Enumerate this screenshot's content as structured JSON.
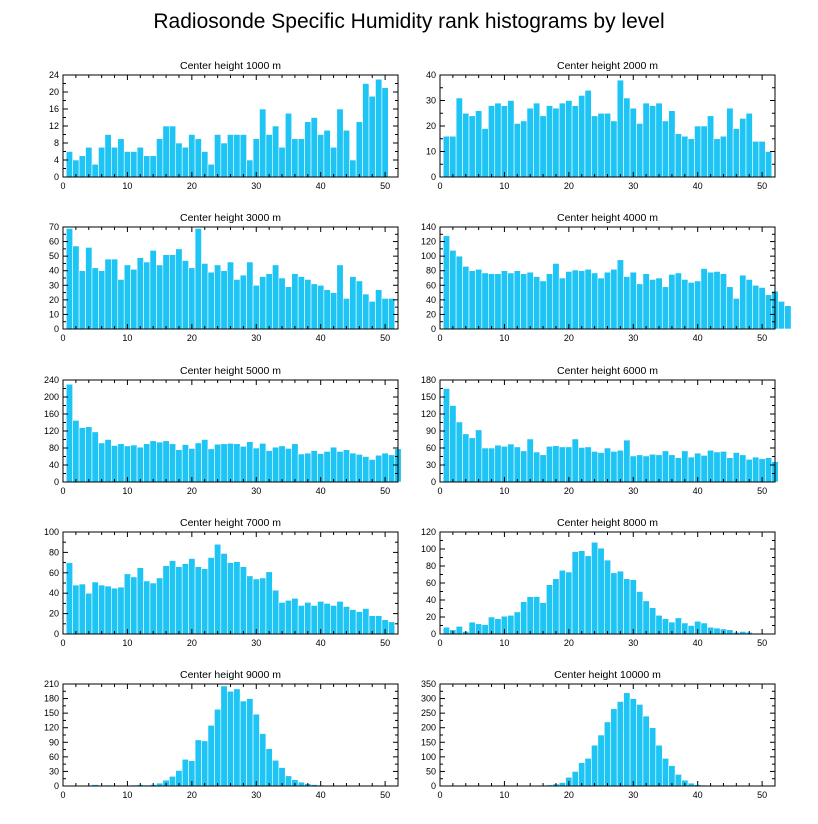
{
  "figure_title": "Radiosonde Specific Humidity rank histograms by level",
  "colors": {
    "bar": "#1ec4f4",
    "axis": "#000000",
    "background": "#ffffff"
  },
  "chart_data": [
    {
      "type": "bar",
      "title": "Center height 1000 m",
      "xlim": [
        0,
        52
      ],
      "ylim": [
        0,
        24
      ],
      "xticks": [
        0,
        10,
        20,
        30,
        40,
        50
      ],
      "yticks": [
        0,
        4,
        8,
        12,
        16,
        20,
        24
      ],
      "x_start": 1,
      "values": [
        6,
        4,
        5,
        7,
        3,
        7,
        10,
        7,
        9,
        6,
        6,
        7,
        5,
        5,
        9,
        12,
        12,
        8,
        7,
        10,
        9,
        6,
        3,
        10,
        8,
        10,
        10,
        10,
        4,
        9,
        16,
        10,
        12,
        7,
        15,
        9,
        9,
        13,
        14,
        10,
        11,
        7,
        16,
        11,
        4,
        13,
        22,
        19,
        23,
        21
      ]
    },
    {
      "type": "bar",
      "title": "Center height 2000 m",
      "xlim": [
        0,
        52
      ],
      "ylim": [
        0,
        40
      ],
      "xticks": [
        0,
        10,
        20,
        30,
        40,
        50
      ],
      "yticks": [
        0,
        10,
        20,
        30,
        40
      ],
      "x_start": 1,
      "values": [
        16,
        16,
        31,
        25,
        24,
        26,
        19,
        28,
        29,
        28,
        30,
        21,
        22,
        27,
        29,
        24,
        28,
        27,
        29,
        30,
        28,
        32,
        34,
        24,
        25,
        25,
        22,
        38,
        31,
        27,
        21,
        29,
        28,
        29,
        22,
        26,
        17,
        16,
        15,
        20,
        20,
        24,
        15,
        16,
        27,
        19,
        23,
        25,
        14,
        14,
        10
      ]
    },
    {
      "type": "bar",
      "title": "Center height 3000 m",
      "xlim": [
        0,
        52
      ],
      "ylim": [
        0,
        70
      ],
      "xticks": [
        0,
        10,
        20,
        30,
        40,
        50
      ],
      "yticks": [
        0,
        10,
        20,
        30,
        40,
        50,
        60,
        70
      ],
      "x_start": 1,
      "values": [
        69,
        57,
        40,
        56,
        42,
        40,
        48,
        48,
        34,
        44,
        41,
        49,
        46,
        54,
        44,
        51,
        51,
        55,
        47,
        42,
        69,
        45,
        39,
        44,
        40,
        46,
        34,
        37,
        46,
        30,
        36,
        38,
        44,
        35,
        29,
        38,
        36,
        34,
        31,
        30,
        27,
        25,
        44,
        21,
        36,
        33,
        24,
        19,
        27,
        21,
        21
      ]
    },
    {
      "type": "bar",
      "title": "Center height 4000 m",
      "xlim": [
        0,
        52
      ],
      "ylim": [
        0,
        140
      ],
      "xticks": [
        0,
        10,
        20,
        30,
        40,
        50
      ],
      "yticks": [
        0,
        20,
        40,
        60,
        80,
        100,
        120,
        140
      ],
      "x_start": 1,
      "values": [
        128,
        108,
        100,
        86,
        80,
        82,
        77,
        76,
        76,
        80,
        77,
        80,
        76,
        78,
        72,
        66,
        76,
        90,
        70,
        79,
        81,
        80,
        82,
        77,
        70,
        78,
        82,
        95,
        72,
        78,
        62,
        76,
        68,
        70,
        58,
        75,
        77,
        68,
        64,
        66,
        83,
        78,
        79,
        76,
        58,
        42,
        74,
        68,
        60,
        57,
        47,
        52,
        38,
        32
      ]
    },
    {
      "type": "bar",
      "title": "Center height 5000 m",
      "xlim": [
        0,
        52
      ],
      "ylim": [
        0,
        240
      ],
      "xticks": [
        0,
        10,
        20,
        30,
        40,
        50
      ],
      "yticks": [
        0,
        40,
        80,
        120,
        160,
        200,
        240
      ],
      "x_start": 1,
      "values": [
        230,
        145,
        128,
        130,
        118,
        92,
        100,
        86,
        90,
        85,
        87,
        82,
        90,
        97,
        94,
        97,
        90,
        76,
        88,
        79,
        92,
        100,
        78,
        89,
        90,
        91,
        90,
        84,
        95,
        80,
        91,
        74,
        82,
        85,
        79,
        90,
        66,
        68,
        74,
        67,
        72,
        82,
        72,
        76,
        68,
        65,
        60,
        53,
        63,
        68,
        64,
        78
      ]
    },
    {
      "type": "bar",
      "title": "Center height 6000 m",
      "xlim": [
        0,
        52
      ],
      "ylim": [
        0,
        180
      ],
      "xticks": [
        0,
        10,
        20,
        30,
        40,
        50
      ],
      "yticks": [
        0,
        30,
        60,
        90,
        120,
        150,
        180
      ],
      "x_start": 1,
      "values": [
        165,
        135,
        106,
        85,
        78,
        92,
        60,
        60,
        65,
        63,
        67,
        62,
        55,
        76,
        53,
        48,
        63,
        64,
        62,
        62,
        76,
        61,
        62,
        54,
        52,
        60,
        54,
        56,
        74,
        46,
        48,
        46,
        49,
        48,
        55,
        48,
        43,
        55,
        44,
        51,
        47,
        56,
        53,
        54,
        43,
        52,
        48,
        40,
        44,
        41,
        43,
        36
      ]
    },
    {
      "type": "bar",
      "title": "Center height 7000 m",
      "xlim": [
        0,
        52
      ],
      "ylim": [
        0,
        100
      ],
      "xticks": [
        0,
        10,
        20,
        30,
        40,
        50
      ],
      "yticks": [
        0,
        20,
        40,
        60,
        80,
        100
      ],
      "x_start": 1,
      "values": [
        70,
        48,
        49,
        40,
        51,
        48,
        47,
        45,
        46,
        59,
        56,
        65,
        52,
        50,
        55,
        67,
        72,
        66,
        69,
        74,
        66,
        64,
        75,
        88,
        79,
        70,
        71,
        66,
        57,
        54,
        55,
        61,
        43,
        31,
        33,
        35,
        28,
        31,
        28,
        32,
        30,
        28,
        32,
        27,
        24,
        22,
        25,
        18,
        18,
        14,
        12
      ]
    },
    {
      "type": "bar",
      "title": "Center height 8000 m",
      "xlim": [
        0,
        52
      ],
      "ylim": [
        0,
        120
      ],
      "xticks": [
        0,
        10,
        20,
        30,
        40,
        50
      ],
      "yticks": [
        0,
        20,
        40,
        60,
        80,
        100,
        120
      ],
      "x_start": 1,
      "values": [
        8,
        5,
        9,
        3,
        14,
        12,
        11,
        20,
        18,
        21,
        22,
        26,
        38,
        44,
        44,
        37,
        58,
        65,
        75,
        73,
        97,
        98,
        92,
        108,
        101,
        87,
        72,
        74,
        65,
        64,
        50,
        39,
        31,
        22,
        18,
        14,
        19,
        13,
        10,
        15,
        13,
        8,
        7,
        6,
        5,
        2,
        3,
        2,
        1,
        0
      ]
    },
    {
      "type": "bar",
      "title": "Center height 9000 m",
      "xlim": [
        0,
        52
      ],
      "ylim": [
        0,
        210
      ],
      "xticks": [
        0,
        10,
        20,
        30,
        40,
        50
      ],
      "yticks": [
        0,
        30,
        60,
        90,
        120,
        150,
        180,
        210
      ],
      "x_start": 1,
      "values": [
        0,
        0,
        1,
        0,
        3,
        1,
        2,
        0,
        1,
        0,
        2,
        3,
        2,
        3,
        6,
        12,
        20,
        32,
        55,
        52,
        95,
        93,
        125,
        158,
        206,
        195,
        200,
        175,
        180,
        148,
        108,
        77,
        53,
        38,
        21,
        13,
        8,
        5,
        3,
        2,
        1,
        0,
        0,
        0,
        1,
        0,
        0,
        0,
        1,
        0
      ]
    },
    {
      "type": "bar",
      "title": "Center height 10000 m",
      "xlim": [
        0,
        52
      ],
      "ylim": [
        0,
        350
      ],
      "xticks": [
        0,
        10,
        20,
        30,
        40,
        50
      ],
      "yticks": [
        0,
        50,
        100,
        150,
        200,
        250,
        300,
        350
      ],
      "x_start": 1,
      "values": [
        0,
        0,
        0,
        0,
        0,
        0,
        0,
        0,
        0,
        0,
        0,
        0,
        1,
        1,
        1,
        2,
        4,
        7,
        12,
        30,
        50,
        80,
        95,
        140,
        175,
        220,
        265,
        290,
        320,
        300,
        280,
        240,
        200,
        140,
        95,
        70,
        40,
        20,
        10,
        5,
        3,
        1,
        0,
        0,
        0,
        0,
        0,
        0,
        0,
        0
      ]
    }
  ]
}
